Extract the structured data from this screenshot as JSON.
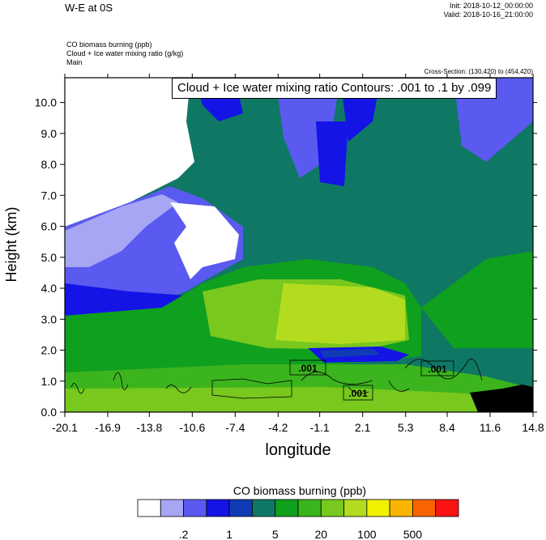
{
  "header": {
    "title": "W-E at 0S",
    "init": "Init: 2018-10-12_00:00:00",
    "valid": "Valid: 2018-10-16_21:00:00",
    "fields": [
      "CO biomass burning   (ppb)",
      "Cloud + Ice water mixing ratio   (g/kg)",
      "Main"
    ],
    "cross_section": "Cross-Section: (130,420) to (454,420)"
  },
  "contour_label": "Cloud + Ice water mixing ratio Contours: .001 to .1 by .099",
  "contour_tags": [
    ".001",
    ".001",
    ".001"
  ],
  "chart_data": {
    "type": "heatmap",
    "title": "W-E at 0S",
    "xlabel": "longitude",
    "ylabel": "Height (km)",
    "xlim": [
      -20.1,
      14.8
    ],
    "ylim": [
      0.0,
      10.8
    ],
    "x_ticks": [
      "-20.1",
      "-16.9",
      "-13.8",
      "-10.6",
      "-7.4",
      "-4.2",
      "-1.1",
      "2.1",
      "5.3",
      "8.4",
      "11.6",
      "14.8"
    ],
    "y_ticks": [
      "0.0",
      "1.0",
      "2.0",
      "3.0",
      "4.0",
      "5.0",
      "6.0",
      "7.0",
      "8.0",
      "9.0",
      "10.0"
    ],
    "colorbar": {
      "title": "CO biomass burning  (ppb)",
      "colors": [
        "#ffffff",
        "#a6a6f5",
        "#5a5af0",
        "#1414e6",
        "#0f3cb4",
        "#0f7864",
        "#0fa01e",
        "#3cb41e",
        "#78c81e",
        "#b4dc1e",
        "#f0f000",
        "#fab400",
        "#fa6400",
        "#fa1414"
      ],
      "tick_labels": [
        ".2",
        "1",
        "5",
        "20",
        "100",
        "500"
      ]
    }
  }
}
